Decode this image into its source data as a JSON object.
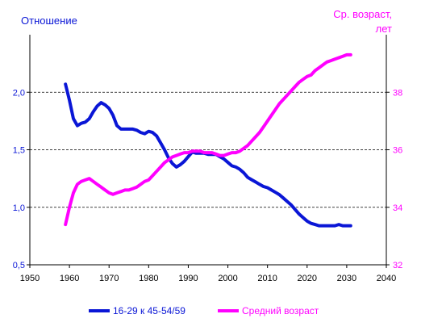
{
  "chart_data": {
    "type": "line",
    "left_axis_title": "Отношение",
    "right_axis_title_line1": "Ср. возраст,",
    "right_axis_title_line2": "лет",
    "x_range": [
      1950,
      2040
    ],
    "x_ticks": [
      "1950",
      "1960",
      "1970",
      "1980",
      "1990",
      "2000",
      "2010",
      "2020",
      "2030",
      "2040"
    ],
    "y_left_range": [
      0.5,
      2.5
    ],
    "y_left_ticks": [
      "0,5",
      "1,0",
      "1,5",
      "2,0"
    ],
    "y_right_range": [
      32,
      40
    ],
    "y_right_ticks": [
      "32",
      "34",
      "36",
      "38"
    ],
    "gridlines": "horizontal dashed at major ticks",
    "legend_position": "bottom",
    "colors": {
      "ratio": "#0a16d6",
      "age": "#ff00ff"
    },
    "series": [
      {
        "name": "16-29 к 45-54/59",
        "axis": "left",
        "x": [
          1959,
          1960,
          1961,
          1962,
          1963,
          1964,
          1965,
          1966,
          1967,
          1968,
          1969,
          1970,
          1971,
          1972,
          1973,
          1974,
          1975,
          1976,
          1977,
          1978,
          1979,
          1980,
          1981,
          1982,
          1983,
          1984,
          1985,
          1986,
          1987,
          1988,
          1989,
          1990,
          1991,
          1992,
          1993,
          1994,
          1995,
          1996,
          1997,
          1998,
          1999,
          2000,
          2001,
          2002,
          2003,
          2004,
          2005,
          2006,
          2007,
          2008,
          2009,
          2010,
          2011,
          2012,
          2013,
          2014,
          2015,
          2016,
          2017,
          2018,
          2019,
          2020,
          2021,
          2022,
          2023,
          2024,
          2025,
          2026,
          2027,
          2028,
          2029,
          2030,
          2031
        ],
        "values": [
          2.07,
          1.93,
          1.77,
          1.71,
          1.73,
          1.74,
          1.77,
          1.83,
          1.88,
          1.91,
          1.89,
          1.86,
          1.8,
          1.71,
          1.68,
          1.68,
          1.68,
          1.68,
          1.67,
          1.65,
          1.64,
          1.66,
          1.65,
          1.62,
          1.56,
          1.5,
          1.43,
          1.38,
          1.35,
          1.37,
          1.4,
          1.44,
          1.48,
          1.47,
          1.47,
          1.47,
          1.46,
          1.46,
          1.46,
          1.44,
          1.42,
          1.39,
          1.36,
          1.35,
          1.33,
          1.3,
          1.26,
          1.24,
          1.22,
          1.2,
          1.18,
          1.17,
          1.15,
          1.13,
          1.11,
          1.08,
          1.05,
          1.02,
          0.98,
          0.94,
          0.91,
          0.88,
          0.86,
          0.85,
          0.84,
          0.84,
          0.84,
          0.84,
          0.84,
          0.85,
          0.84,
          0.84,
          0.84
        ]
      },
      {
        "name": "Средний возраст",
        "axis": "right",
        "x": [
          1959,
          1960,
          1961,
          1962,
          1963,
          1964,
          1965,
          1966,
          1967,
          1968,
          1969,
          1970,
          1971,
          1972,
          1973,
          1974,
          1975,
          1976,
          1977,
          1978,
          1979,
          1980,
          1981,
          1982,
          1983,
          1984,
          1985,
          1986,
          1987,
          1988,
          1989,
          1990,
          1991,
          1992,
          1993,
          1994,
          1995,
          1996,
          1997,
          1998,
          1999,
          2000,
          2001,
          2002,
          2003,
          2004,
          2005,
          2006,
          2007,
          2008,
          2009,
          2010,
          2011,
          2012,
          2013,
          2014,
          2015,
          2016,
          2017,
          2018,
          2019,
          2020,
          2021,
          2022,
          2023,
          2024,
          2025,
          2026,
          2027,
          2028,
          2029,
          2030,
          2031
        ],
        "values": [
          33.4,
          34.0,
          34.5,
          34.8,
          34.9,
          34.95,
          35.0,
          34.9,
          34.8,
          34.7,
          34.6,
          34.5,
          34.45,
          34.5,
          34.55,
          34.6,
          34.6,
          34.65,
          34.7,
          34.8,
          34.9,
          34.95,
          35.1,
          35.25,
          35.4,
          35.55,
          35.65,
          35.75,
          35.8,
          35.85,
          35.9,
          35.9,
          35.95,
          35.95,
          35.95,
          35.9,
          35.9,
          35.9,
          35.85,
          35.8,
          35.8,
          35.85,
          35.9,
          35.9,
          35.95,
          36.05,
          36.15,
          36.3,
          36.45,
          36.6,
          36.8,
          37.0,
          37.2,
          37.4,
          37.6,
          37.75,
          37.9,
          38.05,
          38.2,
          38.35,
          38.45,
          38.55,
          38.6,
          38.75,
          38.85,
          38.95,
          39.05,
          39.1,
          39.15,
          39.2,
          39.25,
          39.3,
          39.3
        ]
      }
    ]
  }
}
